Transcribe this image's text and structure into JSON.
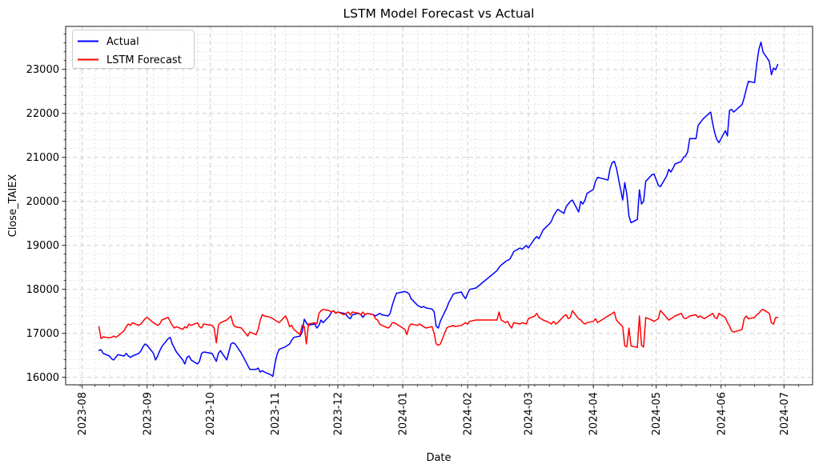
{
  "chart_data": {
    "type": "line",
    "title": "LSTM Model Forecast vs Actual",
    "xlabel": "Date",
    "ylabel": "Close_TAIEX",
    "x_tick_labels": [
      "2023-08",
      "2023-09",
      "2023-10",
      "2023-11",
      "2023-12",
      "2024-01",
      "2024-02",
      "2024-03",
      "2024-04",
      "2024-05",
      "2024-06",
      "2024-07"
    ],
    "y_ticks": [
      16000,
      17000,
      18000,
      19000,
      20000,
      21000,
      22000,
      23000
    ],
    "ylim": [
      15831,
      23976
    ],
    "xlim": [
      "2023-07-24",
      "2024-07-14"
    ],
    "grid": true,
    "grid_major_color": "#c9c9c9",
    "grid_minor_color": "#dedede",
    "legend_position": "upper left",
    "dates": [
      "2023-08-09",
      "2023-08-10",
      "2023-08-11",
      "2023-08-14",
      "2023-08-15",
      "2023-08-16",
      "2023-08-17",
      "2023-08-18",
      "2023-08-21",
      "2023-08-22",
      "2023-08-23",
      "2023-08-24",
      "2023-08-25",
      "2023-08-28",
      "2023-08-29",
      "2023-08-30",
      "2023-08-31",
      "2023-09-01",
      "2023-09-04",
      "2023-09-05",
      "2023-09-06",
      "2023-09-07",
      "2023-09-08",
      "2023-09-11",
      "2023-09-12",
      "2023-09-13",
      "2023-09-14",
      "2023-09-15",
      "2023-09-18",
      "2023-09-19",
      "2023-09-20",
      "2023-09-21",
      "2023-09-22",
      "2023-09-25",
      "2023-09-26",
      "2023-09-27",
      "2023-09-28",
      "2023-10-02",
      "2023-10-03",
      "2023-10-04",
      "2023-10-05",
      "2023-10-06",
      "2023-10-09",
      "2023-10-11",
      "2023-10-12",
      "2023-10-13",
      "2023-10-16",
      "2023-10-17",
      "2023-10-18",
      "2023-10-19",
      "2023-10-20",
      "2023-10-23",
      "2023-10-24",
      "2023-10-25",
      "2023-10-26",
      "2023-10-27",
      "2023-10-30",
      "2023-10-31",
      "2023-11-01",
      "2023-11-02",
      "2023-11-03",
      "2023-11-06",
      "2023-11-07",
      "2023-11-08",
      "2023-11-09",
      "2023-11-10",
      "2023-11-13",
      "2023-11-14",
      "2023-11-15",
      "2023-11-16",
      "2023-11-17",
      "2023-11-20",
      "2023-11-21",
      "2023-11-22",
      "2023-11-23",
      "2023-11-24",
      "2023-11-27",
      "2023-11-28",
      "2023-11-29",
      "2023-11-30",
      "2023-12-01",
      "2023-12-04",
      "2023-12-05",
      "2023-12-06",
      "2023-12-07",
      "2023-12-08",
      "2023-12-11",
      "2023-12-12",
      "2023-12-13",
      "2023-12-14",
      "2023-12-15",
      "2023-12-18",
      "2023-12-19",
      "2023-12-20",
      "2023-12-21",
      "2023-12-22",
      "2023-12-25",
      "2023-12-26",
      "2023-12-27",
      "2023-12-28",
      "2023-12-29",
      "2024-01-02",
      "2024-01-03",
      "2024-01-04",
      "2024-01-05",
      "2024-01-08",
      "2024-01-09",
      "2024-01-10",
      "2024-01-11",
      "2024-01-12",
      "2024-01-15",
      "2024-01-16",
      "2024-01-17",
      "2024-01-18",
      "2024-01-19",
      "2024-01-22",
      "2024-01-23",
      "2024-01-24",
      "2024-01-25",
      "2024-01-26",
      "2024-01-29",
      "2024-01-30",
      "2024-01-31",
      "2024-02-01",
      "2024-02-02",
      "2024-02-05",
      "2024-02-15",
      "2024-02-16",
      "2024-02-17",
      "2024-02-19",
      "2024-02-20",
      "2024-02-21",
      "2024-02-22",
      "2024-02-23",
      "2024-02-26",
      "2024-02-27",
      "2024-02-29",
      "2024-03-01",
      "2024-03-04",
      "2024-03-05",
      "2024-03-06",
      "2024-03-07",
      "2024-03-08",
      "2024-03-11",
      "2024-03-12",
      "2024-03-13",
      "2024-03-14",
      "2024-03-15",
      "2024-03-18",
      "2024-03-19",
      "2024-03-20",
      "2024-03-21",
      "2024-03-22",
      "2024-03-25",
      "2024-03-26",
      "2024-03-27",
      "2024-03-28",
      "2024-03-29",
      "2024-04-01",
      "2024-04-02",
      "2024-04-03",
      "2024-04-08",
      "2024-04-09",
      "2024-04-10",
      "2024-04-11",
      "2024-04-12",
      "2024-04-15",
      "2024-04-16",
      "2024-04-17",
      "2024-04-18",
      "2024-04-19",
      "2024-04-22",
      "2024-04-23",
      "2024-04-24",
      "2024-04-25",
      "2024-04-26",
      "2024-04-29",
      "2024-04-30",
      "2024-05-02",
      "2024-05-03",
      "2024-05-06",
      "2024-05-07",
      "2024-05-08",
      "2024-05-09",
      "2024-05-10",
      "2024-05-13",
      "2024-05-14",
      "2024-05-15",
      "2024-05-16",
      "2024-05-17",
      "2024-05-20",
      "2024-05-21",
      "2024-05-22",
      "2024-05-23",
      "2024-05-24",
      "2024-05-27",
      "2024-05-28",
      "2024-05-29",
      "2024-05-30",
      "2024-05-31",
      "2024-06-03",
      "2024-06-04",
      "2024-06-05",
      "2024-06-06",
      "2024-06-07",
      "2024-06-11",
      "2024-06-12",
      "2024-06-13",
      "2024-06-14",
      "2024-06-17",
      "2024-06-18",
      "2024-06-19",
      "2024-06-20",
      "2024-06-21",
      "2024-06-24",
      "2024-06-25",
      "2024-06-26",
      "2024-06-27",
      "2024-06-28"
    ],
    "series": [
      {
        "name": "Actual",
        "color": "#0000ff",
        "values": [
          16610,
          16630,
          16545,
          16485,
          16424,
          16394,
          16455,
          16515,
          16485,
          16545,
          16485,
          16455,
          16485,
          16545,
          16600,
          16698,
          16758,
          16727,
          16545,
          16394,
          16485,
          16600,
          16698,
          16879,
          16909,
          16760,
          16667,
          16576,
          16394,
          16303,
          16454,
          16485,
          16394,
          16303,
          16364,
          16545,
          16576,
          16545,
          16454,
          16364,
          16545,
          16606,
          16394,
          16758,
          16788,
          16758,
          16545,
          16454,
          16364,
          16273,
          16182,
          16182,
          16210,
          16120,
          16150,
          16120,
          16060,
          16020,
          16304,
          16516,
          16636,
          16697,
          16727,
          16758,
          16848,
          16909,
          16939,
          17030,
          17321,
          17240,
          17182,
          17212,
          17121,
          17182,
          17303,
          17242,
          17394,
          17485,
          17515,
          17455,
          17485,
          17455,
          17424,
          17364,
          17333,
          17424,
          17455,
          17424,
          17364,
          17424,
          17455,
          17424,
          17394,
          17424,
          17455,
          17424,
          17394,
          17455,
          17636,
          17790,
          17910,
          17950,
          17930,
          17900,
          17790,
          17640,
          17610,
          17590,
          17610,
          17580,
          17550,
          17490,
          17161,
          17120,
          17280,
          17580,
          17700,
          17790,
          17880,
          17910,
          17940,
          17850,
          17790,
          17910,
          18000,
          18030,
          18426,
          18500,
          18550,
          18630,
          18660,
          18680,
          18760,
          18860,
          18940,
          18910,
          19000,
          18940,
          19153,
          19200,
          19153,
          19244,
          19350,
          19486,
          19550,
          19667,
          19750,
          19818,
          19727,
          19879,
          19940,
          20000,
          20031,
          19758,
          20000,
          19940,
          20031,
          20182,
          20273,
          20455,
          20545,
          20485,
          20750,
          20880,
          20909,
          20760,
          20030,
          20426,
          20152,
          19667,
          19515,
          19590,
          20262,
          19940,
          20000,
          20455,
          20606,
          20620,
          20364,
          20333,
          20576,
          20727,
          20667,
          20750,
          20849,
          20909,
          21000,
          21030,
          21121,
          21425,
          21425,
          21727,
          21788,
          21850,
          21900,
          22031,
          21758,
          21546,
          21400,
          21335,
          21607,
          21485,
          22062,
          22091,
          22030,
          22200,
          22350,
          22550,
          22727,
          22700,
          23122,
          23450,
          23618,
          23394,
          23182,
          22879,
          23030,
          22990,
          23110
        ]
      },
      {
        "name": "LSTM Forecast",
        "color": "#ff0000",
        "values": [
          17150,
          16880,
          16920,
          16900,
          16910,
          16940,
          16910,
          16940,
          17060,
          17150,
          17212,
          17182,
          17240,
          17182,
          17212,
          17273,
          17333,
          17364,
          17242,
          17212,
          17182,
          17212,
          17303,
          17364,
          17273,
          17182,
          17121,
          17151,
          17091,
          17151,
          17121,
          17212,
          17182,
          17242,
          17151,
          17121,
          17212,
          17182,
          17121,
          16788,
          17182,
          17242,
          17303,
          17394,
          17212,
          17151,
          17121,
          17060,
          17000,
          16939,
          17030,
          16970,
          17091,
          17303,
          17425,
          17394,
          17364,
          17333,
          17303,
          17273,
          17242,
          17394,
          17303,
          17152,
          17182,
          17091,
          16970,
          17182,
          17152,
          16760,
          17212,
          17242,
          17212,
          17455,
          17515,
          17546,
          17515,
          17485,
          17515,
          17455,
          17485,
          17425,
          17455,
          17485,
          17425,
          17485,
          17455,
          17425,
          17485,
          17425,
          17455,
          17425,
          17333,
          17303,
          17212,
          17182,
          17121,
          17152,
          17242,
          17242,
          17212,
          17091,
          16970,
          17152,
          17212,
          17182,
          17212,
          17182,
          17152,
          17121,
          17152,
          17000,
          16760,
          16730,
          16760,
          17121,
          17152,
          17152,
          17182,
          17152,
          17182,
          17212,
          17242,
          17212,
          17273,
          17303,
          17303,
          17485,
          17303,
          17243,
          17273,
          17182,
          17121,
          17242,
          17212,
          17243,
          17212,
          17333,
          17394,
          17455,
          17364,
          17333,
          17303,
          17243,
          17212,
          17273,
          17212,
          17243,
          17394,
          17424,
          17333,
          17364,
          17515,
          17333,
          17303,
          17243,
          17212,
          17243,
          17273,
          17333,
          17243,
          17394,
          17424,
          17455,
          17485,
          17303,
          17152,
          16715,
          16697,
          17121,
          16715,
          16680,
          17394,
          16733,
          16690,
          17360,
          17300,
          17273,
          17333,
          17520,
          17360,
          17300,
          17333,
          17360,
          17394,
          17455,
          17360,
          17333,
          17360,
          17394,
          17424,
          17360,
          17394,
          17360,
          17333,
          17424,
          17455,
          17360,
          17333,
          17455,
          17360,
          17250,
          17170,
          17060,
          17030,
          17090,
          17333,
          17394,
          17333,
          17360,
          17424,
          17455,
          17520,
          17545,
          17455,
          17240,
          17210,
          17360,
          17360
        ]
      }
    ]
  }
}
